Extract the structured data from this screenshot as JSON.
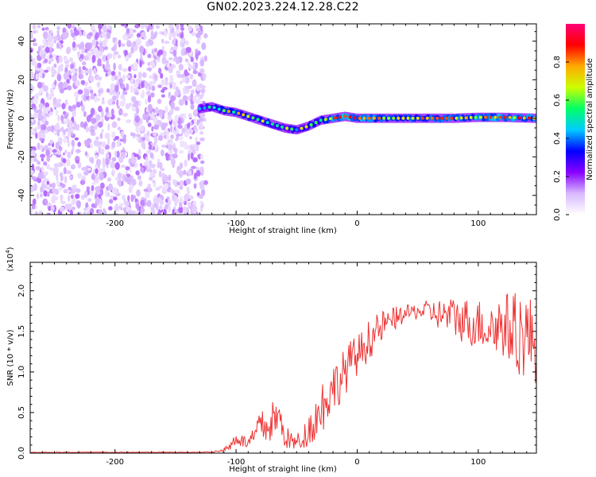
{
  "title": "GN02.2023.224.12.28.C22",
  "chart_data": [
    {
      "type": "heatmap",
      "xlabel": "Height of straight line (km)",
      "ylabel": "Frequency (Hz)",
      "xlim": [
        -270,
        148
      ],
      "ylim": [
        -50,
        49
      ],
      "x_ticks": [
        -200,
        -100,
        0,
        100
      ],
      "y_ticks": [
        -40,
        -20,
        0,
        20,
        40
      ],
      "colorbar": {
        "label": "Normalized spectral amplitude",
        "range": [
          0.0,
          1.0
        ],
        "ticks": [
          0.0,
          0.2,
          0.4,
          0.6,
          0.8
        ],
        "colormap": [
          "#ffffff",
          "#d8b8ff",
          "#8800ff",
          "#0000ff",
          "#00ccff",
          "#00ff66",
          "#ccff00",
          "#ffaa00",
          "#ff0000",
          "#ff0077"
        ]
      },
      "noise_region_x": [
        -270,
        -125
      ],
      "ridge": {
        "x": [
          -130,
          -120,
          -110,
          -100,
          -90,
          -80,
          -70,
          -60,
          -50,
          -40,
          -30,
          -20,
          -10,
          0,
          20,
          40,
          60,
          80,
          100,
          120,
          148
        ],
        "frequency": [
          5,
          6,
          4,
          3,
          1,
          -1,
          -3,
          -5,
          -6,
          -4,
          -1,
          0,
          1,
          0,
          0,
          0,
          0,
          0,
          0.5,
          0.5,
          0
        ],
        "amplitude": [
          0.3,
          0.45,
          0.5,
          0.5,
          0.5,
          0.45,
          0.45,
          0.4,
          0.4,
          0.45,
          0.5,
          0.6,
          0.7,
          0.65,
          0.55,
          0.55,
          0.55,
          0.6,
          0.6,
          0.65,
          0.6
        ]
      }
    },
    {
      "type": "line",
      "xlabel": "Height of straight line (km)",
      "ylabel": "SNR (10 * v/v)",
      "y_multiplier": "(x10",
      "y_multiplier_exp": "4",
      "y_multiplier_close": ")",
      "xlim": [
        -270,
        148
      ],
      "ylim": [
        0,
        2.35
      ],
      "x_ticks": [
        -200,
        -100,
        0,
        100
      ],
      "y_ticks": [
        "0.0",
        "0.5",
        "1.0",
        "1.5",
        "2.0"
      ],
      "color": "#ee3333",
      "series": [
        {
          "x": [
            -270,
            -250,
            -230,
            -210,
            -190,
            -170,
            -150,
            -130,
            -115,
            -105,
            -100,
            -95,
            -90,
            -85,
            -80,
            -75,
            -70,
            -65,
            -60,
            -55,
            -50,
            -45,
            -40,
            -35,
            -30,
            -25,
            -20,
            -15,
            -10,
            -5,
            0,
            5,
            10,
            20,
            30,
            40,
            50,
            60,
            70,
            80,
            90,
            100,
            110,
            120,
            130,
            140,
            148
          ],
          "values": [
            0.01,
            0.01,
            0.01,
            0.01,
            0.01,
            0.01,
            0.01,
            0.01,
            0.02,
            0.08,
            0.2,
            0.15,
            0.12,
            0.2,
            0.35,
            0.3,
            0.4,
            0.45,
            0.22,
            0.15,
            0.12,
            0.18,
            0.3,
            0.4,
            0.55,
            0.7,
            0.8,
            0.9,
            1.0,
            1.15,
            1.2,
            1.3,
            1.4,
            1.55,
            1.65,
            1.72,
            1.75,
            1.74,
            1.7,
            1.68,
            1.62,
            1.6,
            1.55,
            1.58,
            1.5,
            1.45,
            1.35
          ],
          "noise": [
            0,
            0,
            0,
            0,
            0,
            0,
            0,
            0,
            0.01,
            0.05,
            0.1,
            0.08,
            0.08,
            0.12,
            0.2,
            0.2,
            0.25,
            0.25,
            0.15,
            0.12,
            0.12,
            0.15,
            0.2,
            0.25,
            0.35,
            0.35,
            0.3,
            0.3,
            0.3,
            0.25,
            0.25,
            0.25,
            0.25,
            0.2,
            0.15,
            0.1,
            0.1,
            0.15,
            0.2,
            0.25,
            0.3,
            0.3,
            0.35,
            0.4,
            0.5,
            0.55,
            0.5
          ]
        }
      ]
    }
  ]
}
